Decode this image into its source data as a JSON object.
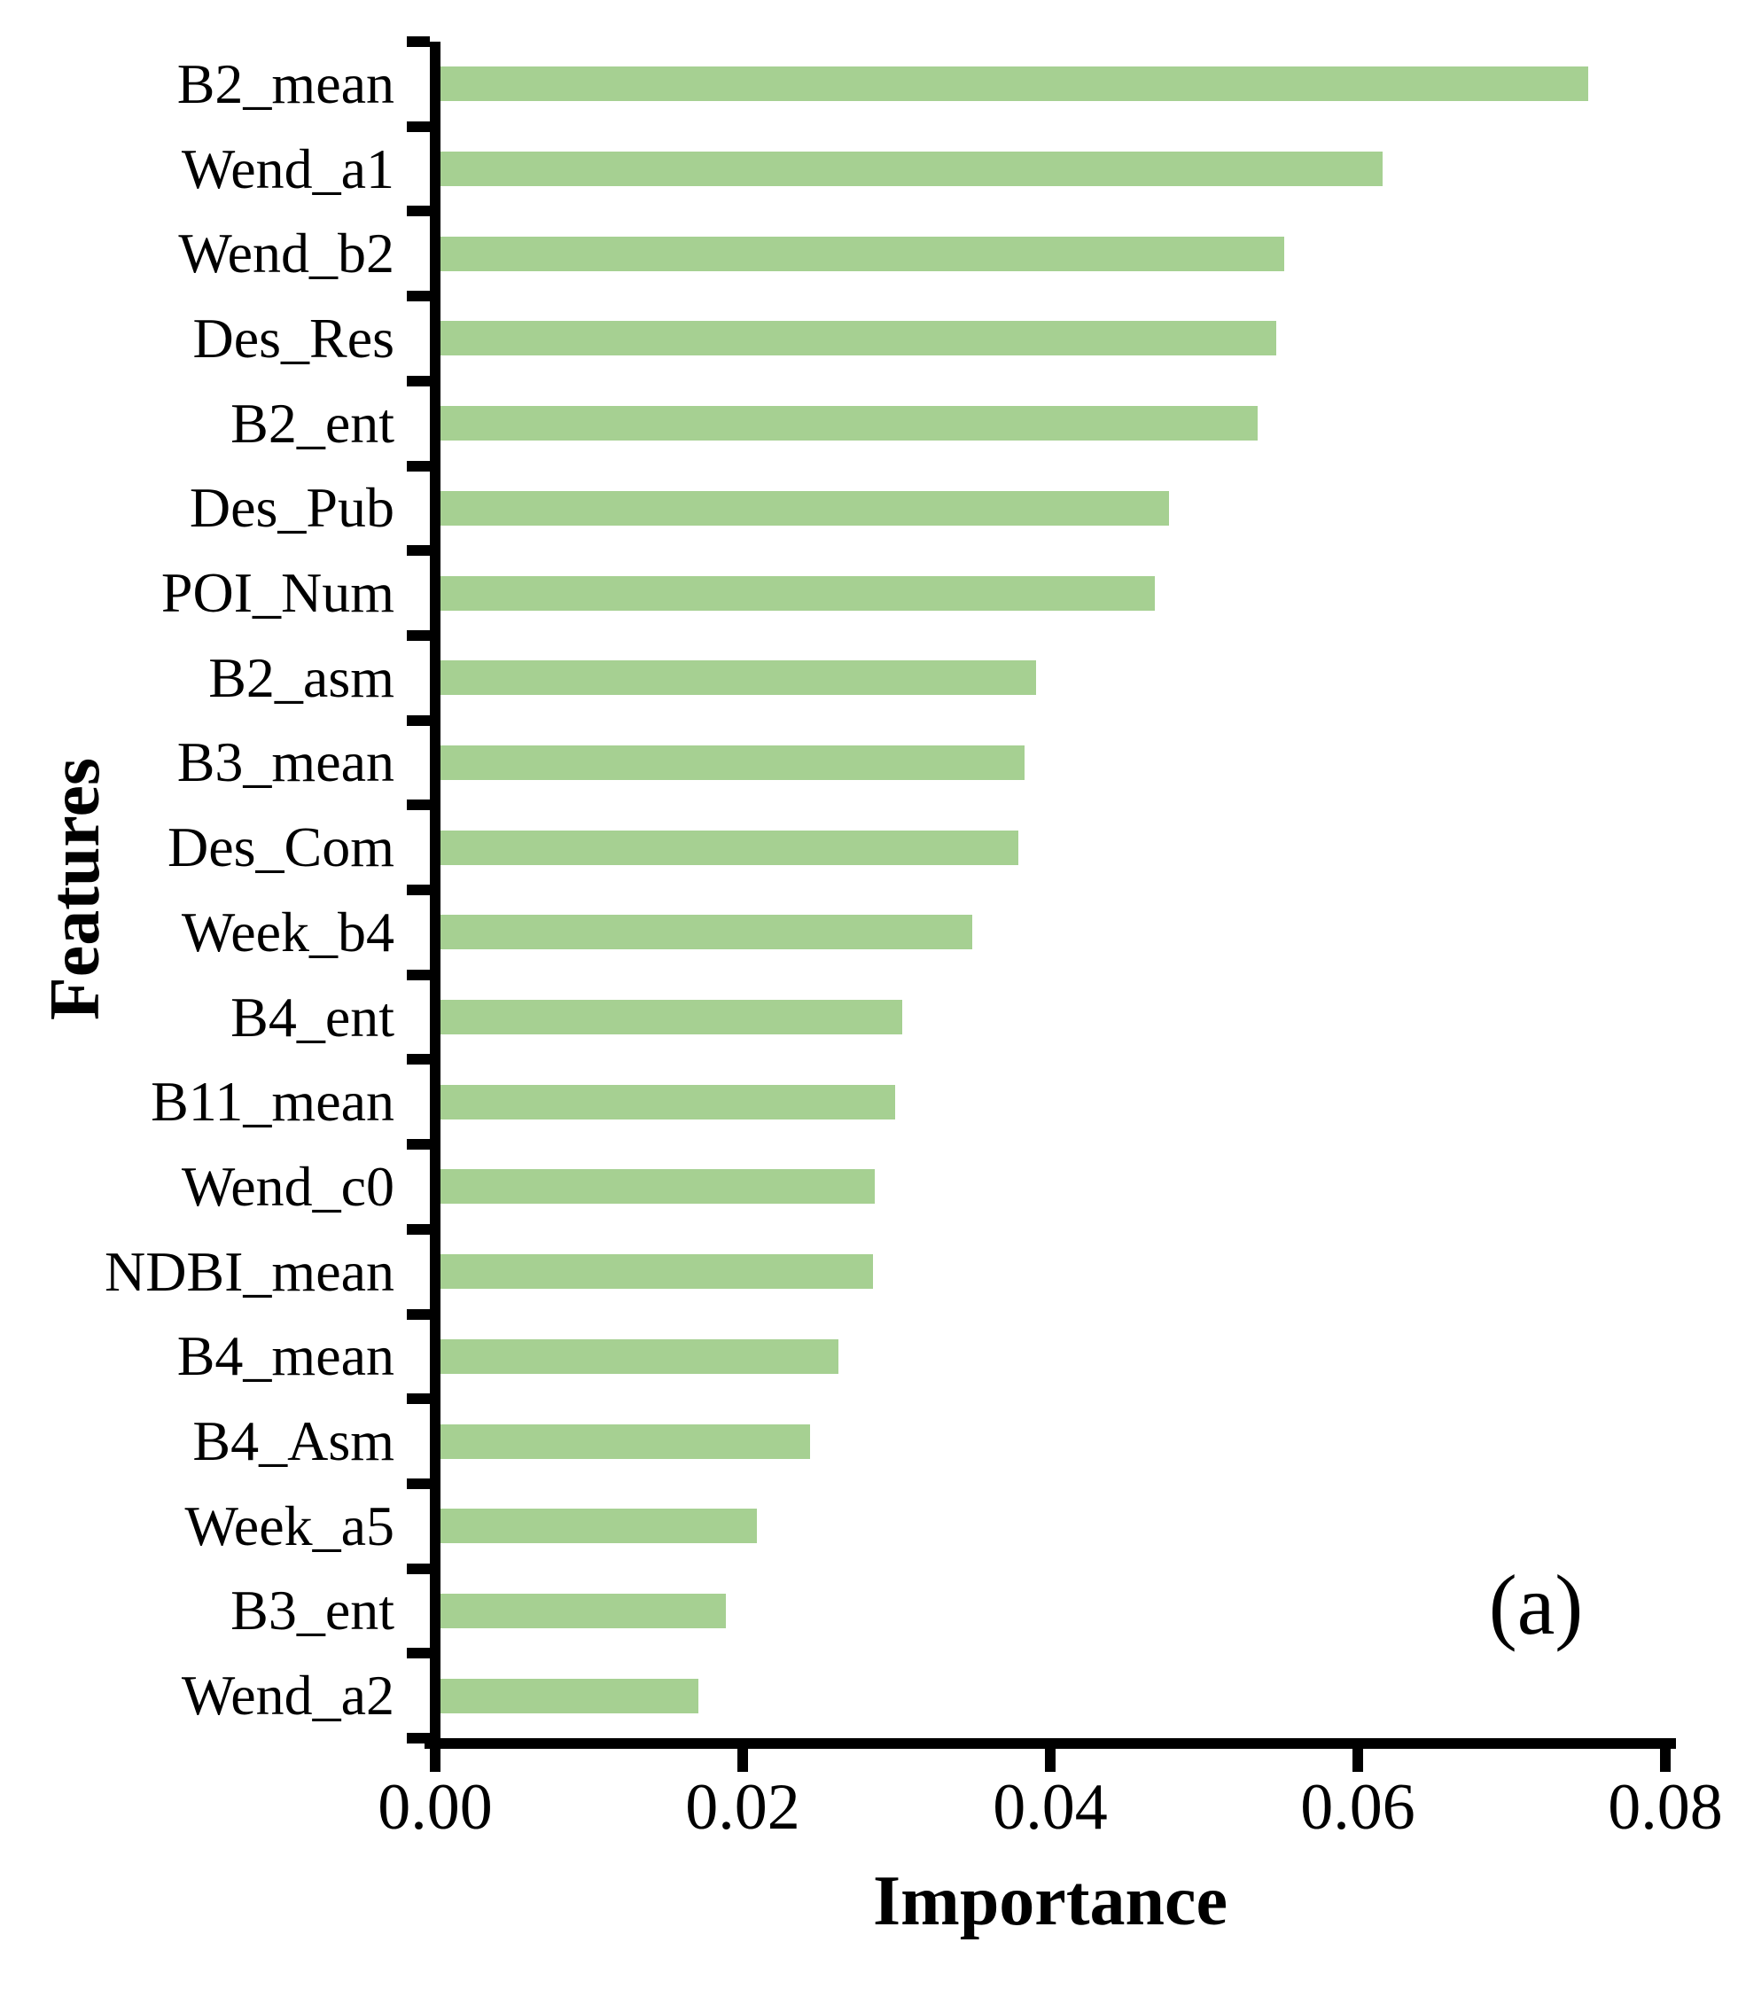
{
  "figure": {
    "panel_label": "(a)"
  },
  "chart_data": {
    "type": "bar",
    "orientation": "horizontal",
    "title": "",
    "xlabel": "Importance",
    "ylabel": "Features",
    "categories": [
      "B2_mean",
      "Wend_a1",
      "Wend_b2",
      "Des_Res",
      "B2_ent",
      "Des_Pub",
      "POI_Num",
      "B2_asm",
      "B3_mean",
      "Des_Com",
      "Week_b4",
      "B4_ent",
      "B11_mean",
      "Wend_c0",
      "NDBI_mean",
      "B4_mean",
      "B4_Asm",
      "Week_a5",
      "B3_ent",
      "Wend_a2"
    ],
    "values": [
      0.075,
      0.0616,
      0.0552,
      0.0547,
      0.0535,
      0.0477,
      0.0468,
      0.0391,
      0.0383,
      0.0379,
      0.0349,
      0.0304,
      0.0299,
      0.0286,
      0.0285,
      0.0262,
      0.0244,
      0.0209,
      0.0189,
      0.0171
    ],
    "xlim": [
      0,
      0.08
    ],
    "xticks": [
      "0.00",
      "0.02",
      "0.04",
      "0.06",
      "0.08"
    ],
    "xtick_values": [
      0,
      0.02,
      0.04,
      0.06,
      0.08
    ],
    "bar_color": "#a6d092",
    "axis_color": "#000000",
    "grid": false,
    "legend": null
  }
}
